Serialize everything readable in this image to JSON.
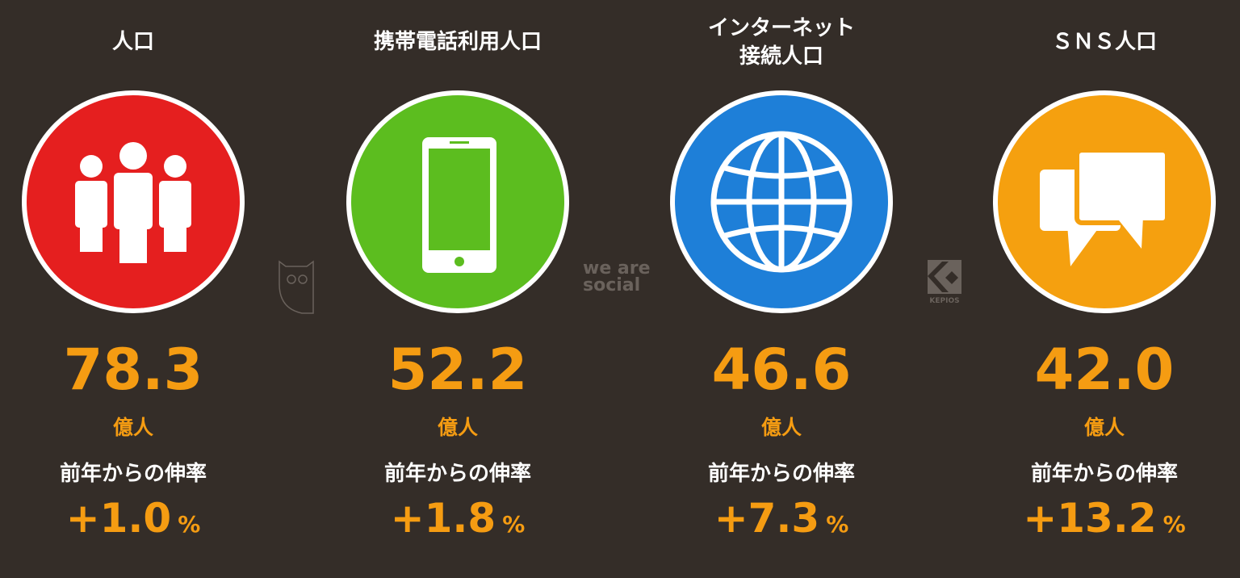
{
  "colors": {
    "background": "#342d28",
    "accent": "#f59c12",
    "population": "#e51f1f",
    "mobile": "#5cbd1f",
    "internet": "#1e7fd8",
    "sns": "#f5a00f"
  },
  "stats": [
    {
      "title": "人口",
      "icon": "people-icon",
      "value": "78.3",
      "unit": "億人",
      "growth_label": "前年からの伸率",
      "growth": "+1.0",
      "pct": "%"
    },
    {
      "title": "携帯電話利用人口",
      "icon": "smartphone-icon",
      "value": "52.2",
      "unit": "億人",
      "growth_label": "前年からの伸率",
      "growth": "+1.8",
      "pct": "%"
    },
    {
      "title_line1": "インターネット",
      "title_line2": "接続人口",
      "icon": "globe-icon",
      "value": "46.6",
      "unit": "億人",
      "growth_label": "前年からの伸率",
      "growth": "+7.3",
      "pct": "%"
    },
    {
      "title": "ＳＮＳ人口",
      "icon": "chat-bubbles-icon",
      "value": "42.0",
      "unit": "億人",
      "growth_label": "前年からの伸率",
      "growth": "+13.2",
      "pct": "%"
    }
  ],
  "logos": {
    "we_are_social": "we are social",
    "kepios": "KEPIOS"
  }
}
